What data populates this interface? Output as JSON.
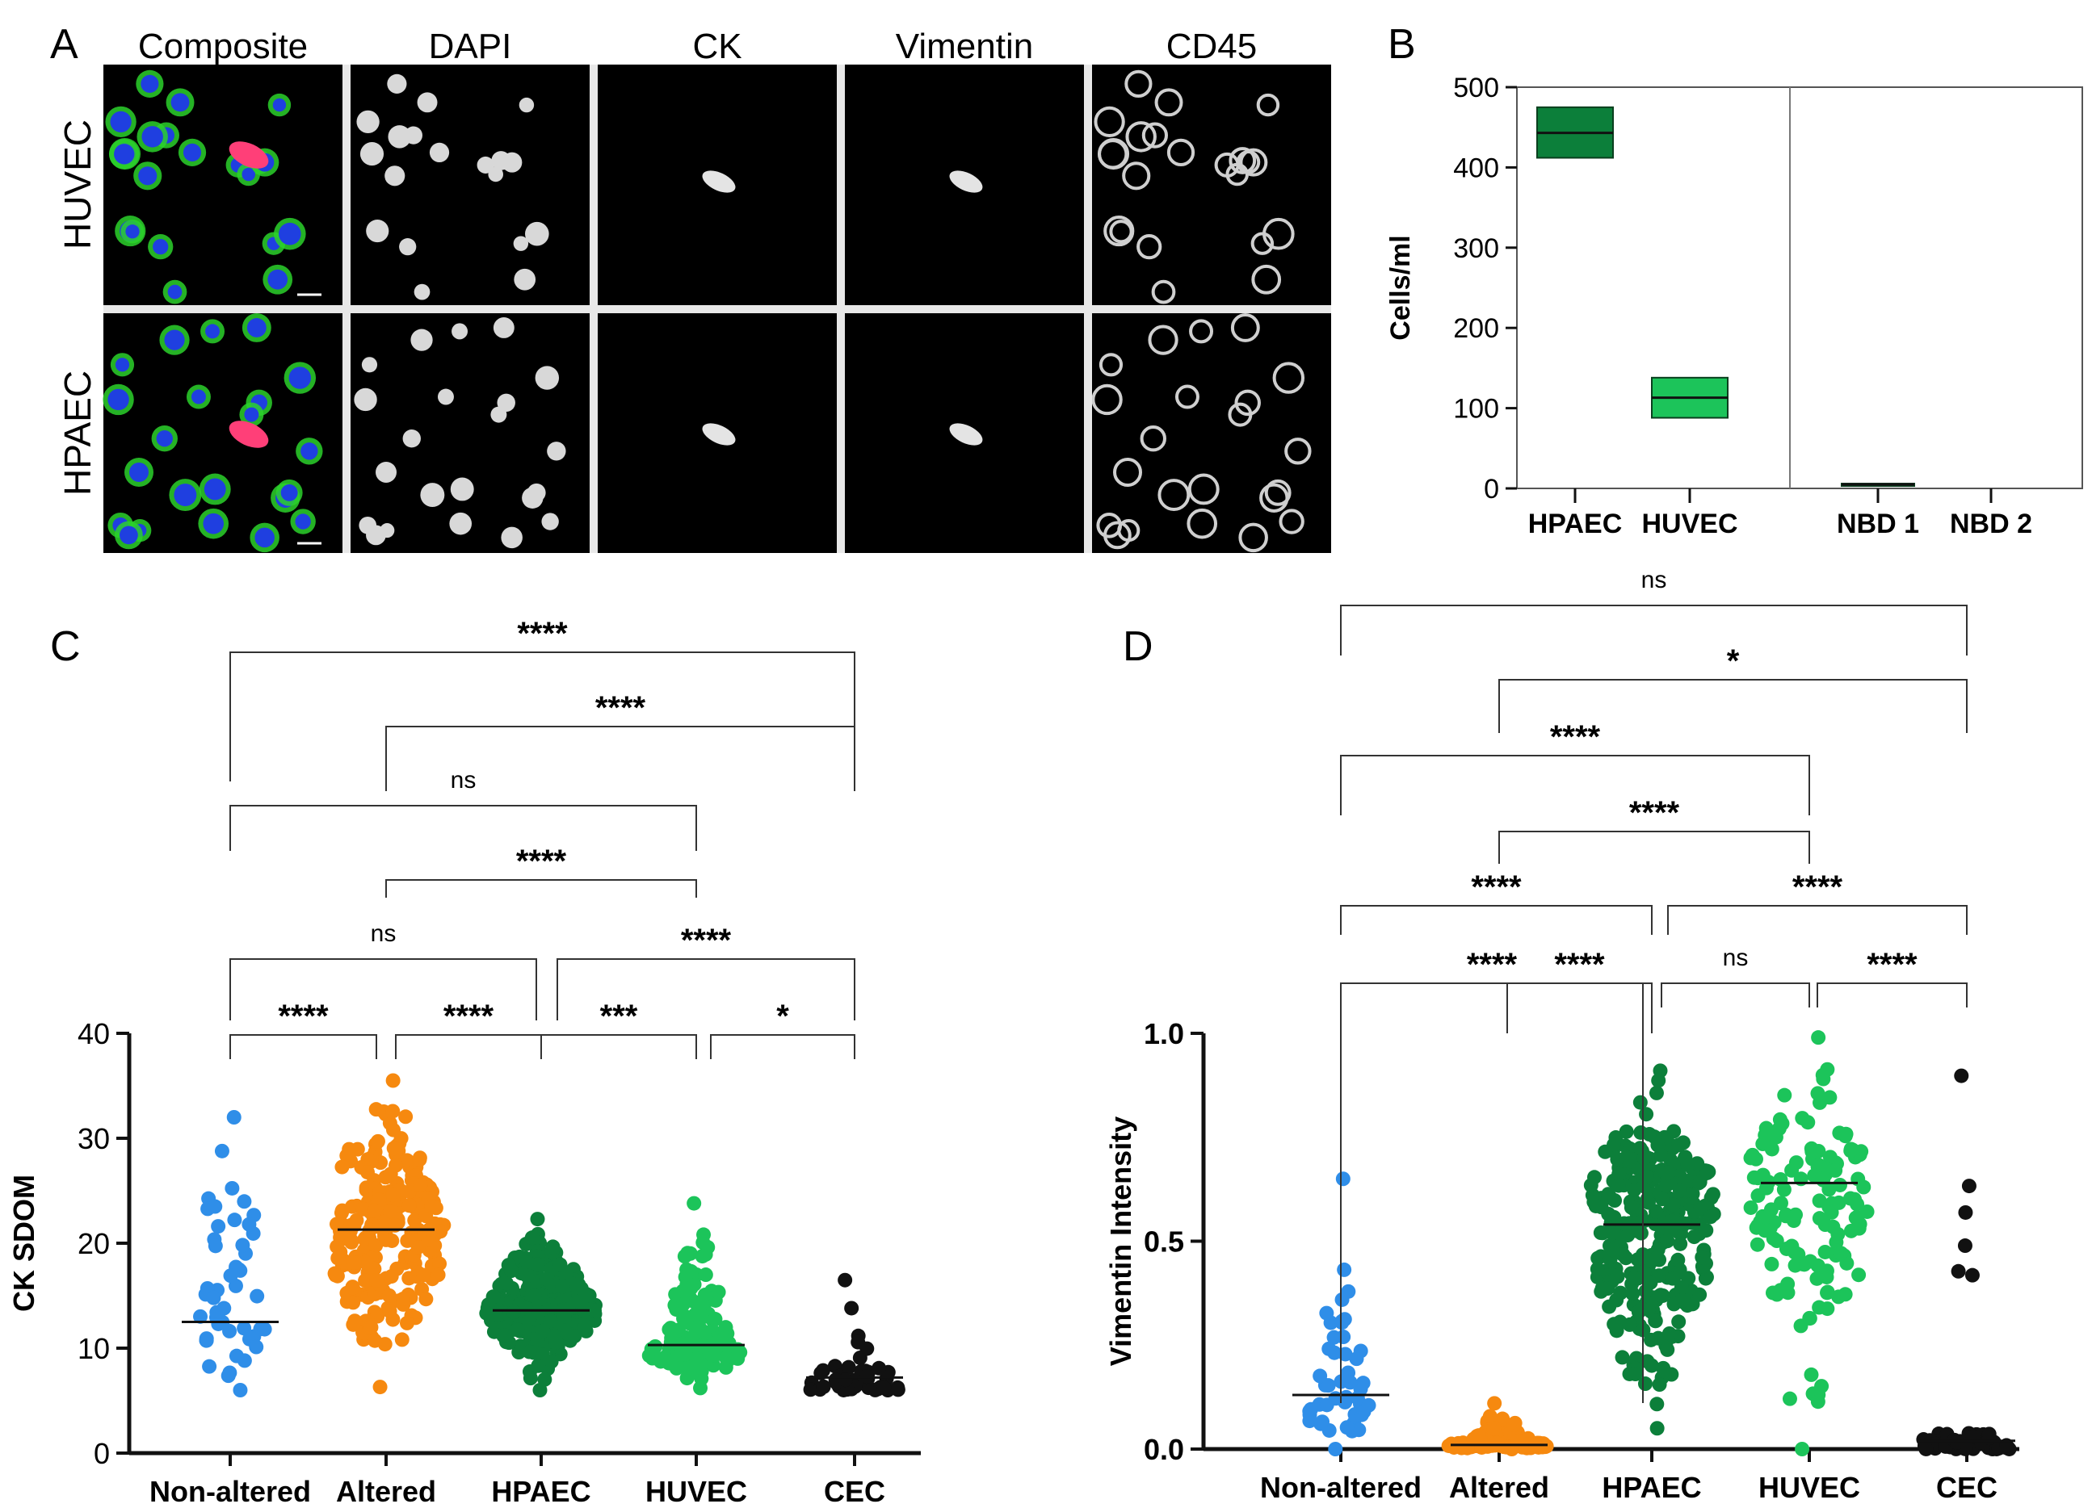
{
  "panels": {
    "A": {
      "letter": "A",
      "columns": [
        "Composite",
        "DAPI",
        "CK",
        "Vimentin",
        "CD45"
      ],
      "rows": [
        "HUVEC",
        "HPAEC"
      ]
    },
    "B": {
      "letter": "B"
    },
    "C": {
      "letter": "C"
    },
    "D": {
      "letter": "D"
    }
  },
  "colors": {
    "blue": "#2f8ee8",
    "orange": "#f6890f",
    "dark_green": "#0c7f3a",
    "light_green": "#1cc45a",
    "black": "#111111"
  },
  "chart_data": [
    {
      "panel": "B",
      "type": "box",
      "ylabel": "Cells/ml",
      "ylim": [
        0,
        500
      ],
      "yticks": [
        "0",
        "100",
        "200",
        "300",
        "400",
        "500"
      ],
      "categories": [
        "HPAEC",
        "HUVEC",
        "NBD 1",
        "NBD 2"
      ],
      "boxes": [
        {
          "category": "HPAEC",
          "low": 412,
          "median": 443,
          "high": 475,
          "color": "#0c7f3a"
        },
        {
          "category": "HUVEC",
          "low": 88,
          "median": 113,
          "high": 138,
          "color": "#1cc45a"
        },
        {
          "category": "NBD 1",
          "low": 4,
          "median": 5,
          "high": 6,
          "color": "#111111"
        },
        {
          "category": "NBD 2",
          "low": 0,
          "median": 0,
          "high": 0,
          "color": "#111111"
        }
      ]
    },
    {
      "panel": "C",
      "type": "scatter",
      "ylabel": "CK SDOM",
      "ylim": [
        0,
        40
      ],
      "yticks": [
        "0",
        "10",
        "20",
        "30",
        "40"
      ],
      "categories": [
        "Non-altered",
        "Altered",
        "HPAEC",
        "HUVEC",
        "CEC"
      ],
      "groups": [
        {
          "name": "Non-altered",
          "median": 12.5,
          "min": 6,
          "max": 32,
          "n": 48,
          "color": "#2f8ee8"
        },
        {
          "name": "Altered",
          "median": 21.3,
          "min": 6.3,
          "max": 35.5,
          "n": 230,
          "color": "#f6890f"
        },
        {
          "name": "HPAEC",
          "median": 13.6,
          "min": 6,
          "max": 22.3,
          "n": 280,
          "color": "#0c7f3a"
        },
        {
          "name": "HUVEC",
          "median": 10.3,
          "min": 6.2,
          "max": 23.8,
          "n": 130,
          "color": "#1cc45a"
        },
        {
          "name": "CEC",
          "median": 7.2,
          "min": 6,
          "max": 17.3,
          "n": 45,
          "color": "#111111"
        }
      ],
      "comparisons": [
        {
          "from": "Non-altered",
          "to": "CEC",
          "label": "****"
        },
        {
          "from": "Altered",
          "to": "CEC",
          "label": "****"
        },
        {
          "from": "Non-altered",
          "to": "HUVEC",
          "label": "ns"
        },
        {
          "from": "Altered",
          "to": "HUVEC",
          "label": "****"
        },
        {
          "from": "Non-altered",
          "to": "HPAEC",
          "label": "ns"
        },
        {
          "from": "HPAEC",
          "to": "CEC",
          "label": "****"
        },
        {
          "from": "Non-altered",
          "to": "Altered",
          "label": "****"
        },
        {
          "from": "Altered",
          "to": "HPAEC",
          "label": "****"
        },
        {
          "from": "HPAEC",
          "to": "HUVEC",
          "label": "***"
        },
        {
          "from": "HUVEC",
          "to": "CEC",
          "label": "*"
        }
      ]
    },
    {
      "panel": "D",
      "type": "scatter",
      "ylabel": "Vimentin Intensity",
      "ylim": [
        0,
        1
      ],
      "yticks": [
        "0.0",
        "0.5",
        "1.0"
      ],
      "categories": [
        "Non-altered",
        "Altered",
        "HPAEC",
        "HUVEC",
        "CEC"
      ],
      "groups": [
        {
          "name": "Non-altered",
          "median": 0.13,
          "min": 0,
          "max": 0.65,
          "n": 48,
          "color": "#2f8ee8"
        },
        {
          "name": "Altered",
          "median": 0.01,
          "min": 0,
          "max": 0.11,
          "n": 120,
          "color": "#f6890f"
        },
        {
          "name": "HPAEC",
          "median": 0.54,
          "min": 0.05,
          "max": 0.91,
          "n": 300,
          "color": "#0c7f3a"
        },
        {
          "name": "HUVEC",
          "median": 0.64,
          "min": 0,
          "max": 0.99,
          "n": 140,
          "color": "#1cc45a"
        },
        {
          "name": "CEC",
          "median": 0.02,
          "min": 0,
          "max": 0.93,
          "n": 50,
          "color": "#111111"
        }
      ],
      "comparisons": [
        {
          "from": "Non-altered",
          "to": "CEC",
          "label": "ns"
        },
        {
          "from": "Altered",
          "to": "CEC",
          "label": "*"
        },
        {
          "from": "Non-altered",
          "to": "HUVEC",
          "label": "****"
        },
        {
          "from": "Altered",
          "to": "HUVEC",
          "label": "****"
        },
        {
          "from": "Non-altered",
          "to": "HPAEC",
          "label": "****"
        },
        {
          "from": "HPAEC",
          "to": "CEC",
          "label": "****"
        },
        {
          "from": "Non-altered",
          "to": "Altered",
          "label": "****"
        },
        {
          "from": "Altered",
          "to": "HPAEC",
          "label": "****"
        },
        {
          "from": "HPAEC",
          "to": "HUVEC",
          "label": "ns"
        },
        {
          "from": "HUVEC",
          "to": "CEC",
          "label": "****"
        }
      ]
    }
  ]
}
